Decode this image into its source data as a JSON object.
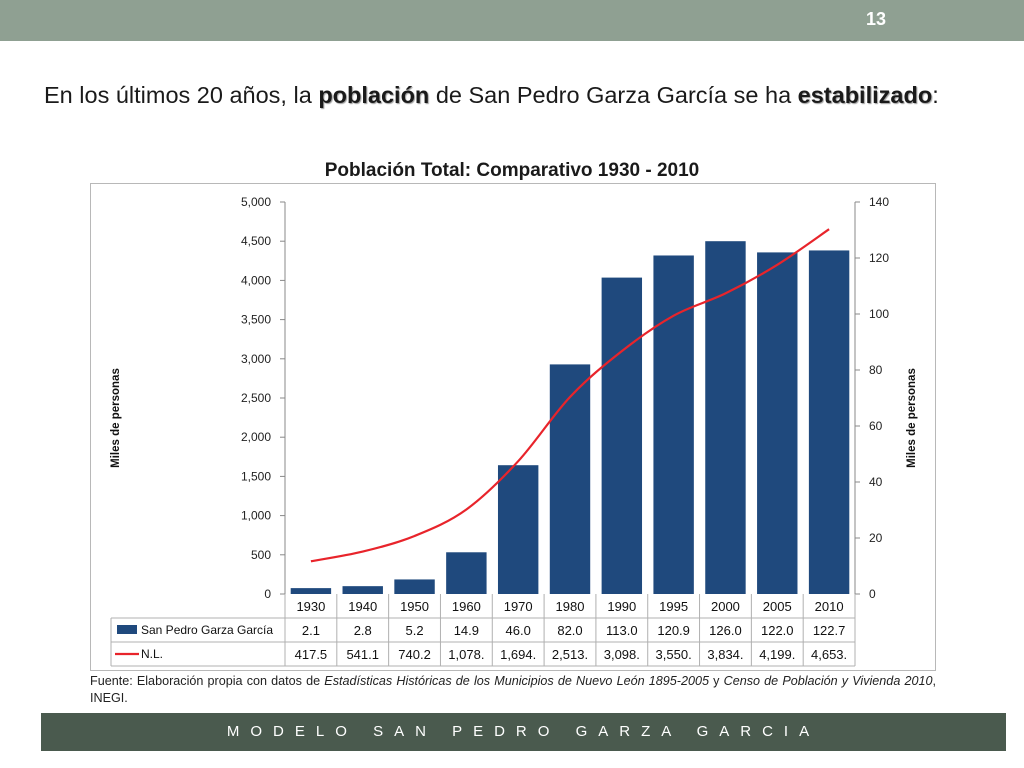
{
  "slide": {
    "number": "13",
    "heading": {
      "part1": "En los últimos 20 años, la ",
      "bold1": "población",
      "part2": " de San Pedro Garza García se ha ",
      "bold2": "estabilizado",
      "part3": ":"
    },
    "source": {
      "part1": "Fuente: Elaboración propia con datos de ",
      "italic1": "Estadísticas Históricas de los Municipios de Nuevo León 1895-2005",
      "part2": " y ",
      "italic2": "Censo de Población y Vivienda 2010",
      "part3": ", INEGI."
    },
    "footer": "MODELO SAN PEDRO GARZA GARCIA"
  },
  "chart_data": {
    "type": "bar",
    "title": "Población Total: Comparativo 1930 - 2010",
    "ylabel": "Miles de personas",
    "y2label": "Miles de personas",
    "categories": [
      "1930",
      "1940",
      "1950",
      "1960",
      "1970",
      "1980",
      "1990",
      "1995",
      "2000",
      "2005",
      "2010"
    ],
    "ylim": [
      0,
      5000
    ],
    "y2lim": [
      0,
      140
    ],
    "yticks": [
      "0",
      "500",
      "1,000",
      "1,500",
      "2,000",
      "2,500",
      "3,000",
      "3,500",
      "4,000",
      "4,500",
      "5,000"
    ],
    "y2ticks": [
      "0",
      "20",
      "40",
      "60",
      "80",
      "100",
      "120",
      "140"
    ],
    "grid": false,
    "series": [
      {
        "name": "San Pedro Garza García",
        "type": "bar",
        "axis": "right",
        "color": "#1f497d",
        "values": [
          2.1,
          2.8,
          5.2,
          14.9,
          46.0,
          82.0,
          113.0,
          120.9,
          126.0,
          122.0,
          122.7
        ],
        "labels": [
          "2.1",
          "2.8",
          "5.2",
          "14.9",
          "46.0",
          "82.0",
          "113.0",
          "120.9",
          "126.0",
          "122.0",
          "122.7"
        ]
      },
      {
        "name": "N.L.",
        "type": "line",
        "axis": "left",
        "color": "#e8242b",
        "values": [
          417.5,
          541.1,
          740.2,
          1078,
          1694,
          2513,
          3098,
          3550,
          3834,
          4199,
          4653
        ],
        "labels": [
          "417.5",
          "541.1",
          "740.2",
          "1,078.",
          "1,694.",
          "2,513.",
          "3,098.",
          "3,550.",
          "3,834.",
          "4,199.",
          "4,653."
        ]
      }
    ]
  }
}
